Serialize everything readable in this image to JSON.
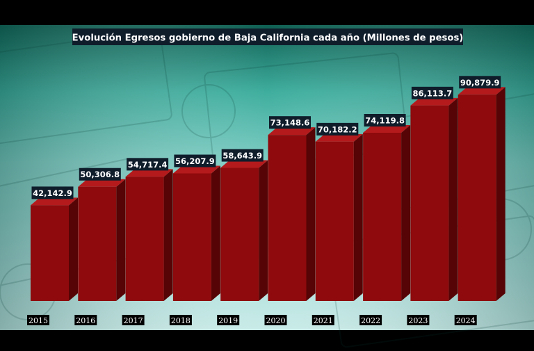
{
  "chart_data": {
    "type": "bar",
    "title": "Evolución Egresos gobierno de Baja California cada año (Millones de pesos)",
    "categories": [
      "2015",
      "2016",
      "2017",
      "2018",
      "2019",
      "2020",
      "2021",
      "2022",
      "2023",
      "2024"
    ],
    "values": [
      42142.9,
      50306.8,
      54717.4,
      56207.9,
      58643.9,
      73148.6,
      70182.2,
      74119.8,
      86113.7,
      90879.9
    ],
    "value_labels": [
      "42,142.9",
      "50,306.8",
      "54,717.4",
      "56,207.9",
      "58,643.9",
      "73,148.6",
      "70,182.2",
      "74,119.8",
      "86,113.7",
      "90,879.9"
    ],
    "xlabel": "",
    "ylabel": "",
    "ylim": [
      0,
      100000
    ],
    "grid": false,
    "legend": "none",
    "colors": {
      "bar_front": "#8e0a0c",
      "bar_side": "#560405",
      "bar_top": "#b41a1c",
      "label_bg": "#0f1d2b",
      "label_text": "#ffffff",
      "background": "#000000"
    }
  }
}
